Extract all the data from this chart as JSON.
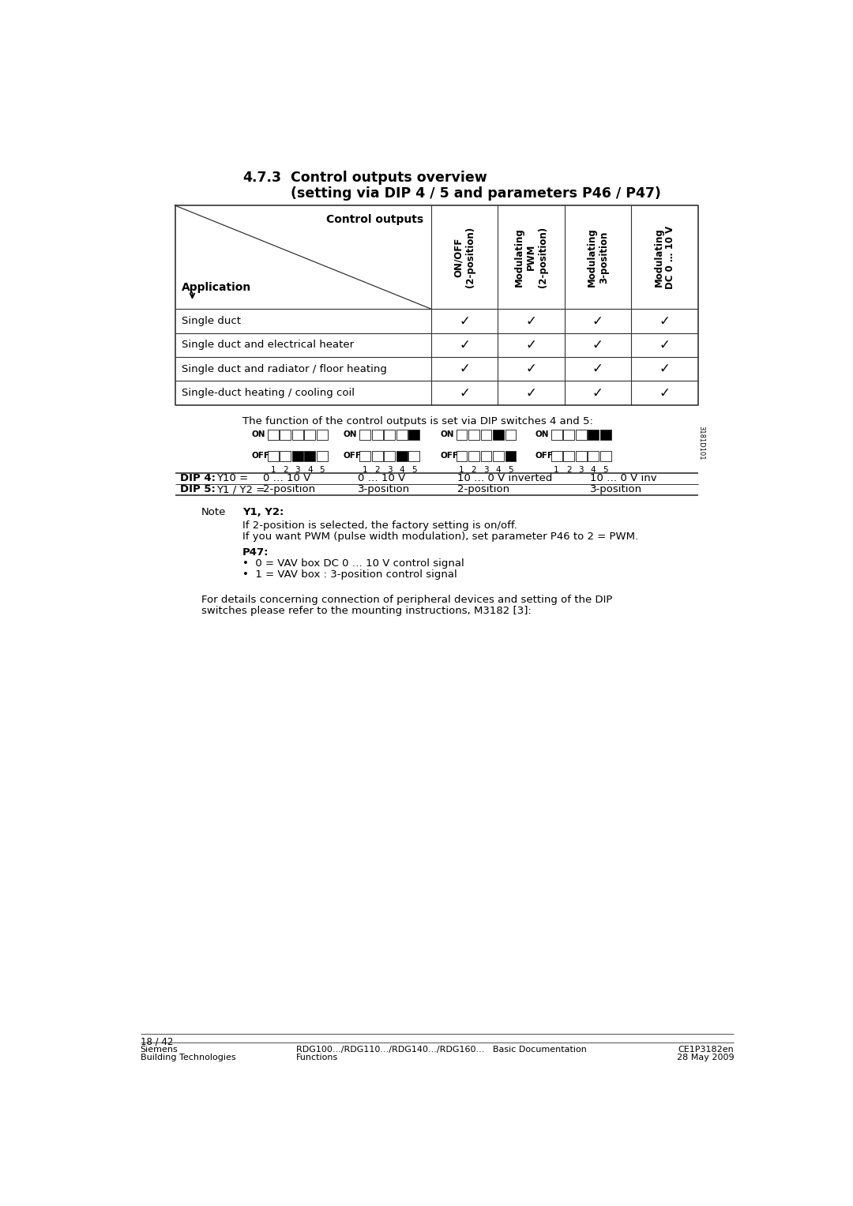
{
  "title_section": "4.7.3",
  "title_main": "Control outputs overview",
  "title_sub": "(setting via DIP 4 / 5 and parameters P46 / P47)",
  "table_header_label": "Control outputs",
  "table_app_label": "Application",
  "col_headers": [
    "ON/OFF\n(2-position)",
    "Modulating\nPWM\n(2-position)",
    "Modulating\n3-position",
    "Modulating\nDC 0 … 10 V"
  ],
  "row_labels": [
    "Single duct",
    "Single duct and electrical heater",
    "Single duct and radiator / floor heating",
    "Single-duct heating / cooling coil"
  ],
  "checkmarks": [
    [
      true,
      true,
      true,
      true
    ],
    [
      true,
      true,
      true,
      true
    ],
    [
      true,
      true,
      true,
      true
    ],
    [
      true,
      true,
      true,
      true
    ]
  ],
  "dip_intro": "The function of the control outputs is set via DIP switches 4 and 5:",
  "dip_switches": [
    {
      "on_black": [
        false,
        false,
        false,
        false,
        false
      ],
      "off_black": [
        false,
        false,
        true,
        true,
        false
      ]
    },
    {
      "on_black": [
        false,
        false,
        false,
        false,
        true
      ],
      "off_black": [
        false,
        false,
        false,
        true,
        false
      ]
    },
    {
      "on_black": [
        false,
        false,
        false,
        true,
        false
      ],
      "off_black": [
        false,
        false,
        false,
        false,
        true
      ]
    },
    {
      "on_black": [
        false,
        false,
        false,
        true,
        true
      ],
      "off_black": [
        false,
        false,
        false,
        false,
        false
      ]
    }
  ],
  "dip4_label": "DIP 4:",
  "dip4_values": [
    "Y10 =",
    "0 … 10 V",
    "0 … 10 V",
    "10 … 0 V inverted",
    "10 … 0 V inv"
  ],
  "dip5_label": "DIP 5:",
  "dip5_values": [
    "Y1 / Y2 =",
    "2-position",
    "3-position",
    "2-position",
    "3-position"
  ],
  "note_label": "Note",
  "note_bold": "Y1, Y2:",
  "note_line1": "If 2-position is selected, the factory setting is on/off.",
  "note_line2": "If you want PWM (pulse width modulation), set parameter P46 to 2 = PWM.",
  "p47_label": "P47:",
  "p47_bullet1": "0 = VAV box DC 0 … 10 V control signal",
  "p47_bullet2": "1 = VAV box : 3-position control signal",
  "footer_para1": "For details concerning connection of peripheral devices and setting of the DIP",
  "footer_para2": "switches please refer to the mounting instructions, M3182 [3]:",
  "page_num": "18 / 42",
  "footer_left1": "Siemens",
  "footer_left2": "Building Technologies",
  "footer_mid1": "RDG100.../RDG110.../RDG140.../RDG160...",
  "footer_mid2": "Basic Documentation",
  "footer_mid3": "Functions",
  "footer_right1": "CE1P3182en",
  "footer_right2": "28 May 2009",
  "bg_color": "#ffffff",
  "text_color": "#000000"
}
